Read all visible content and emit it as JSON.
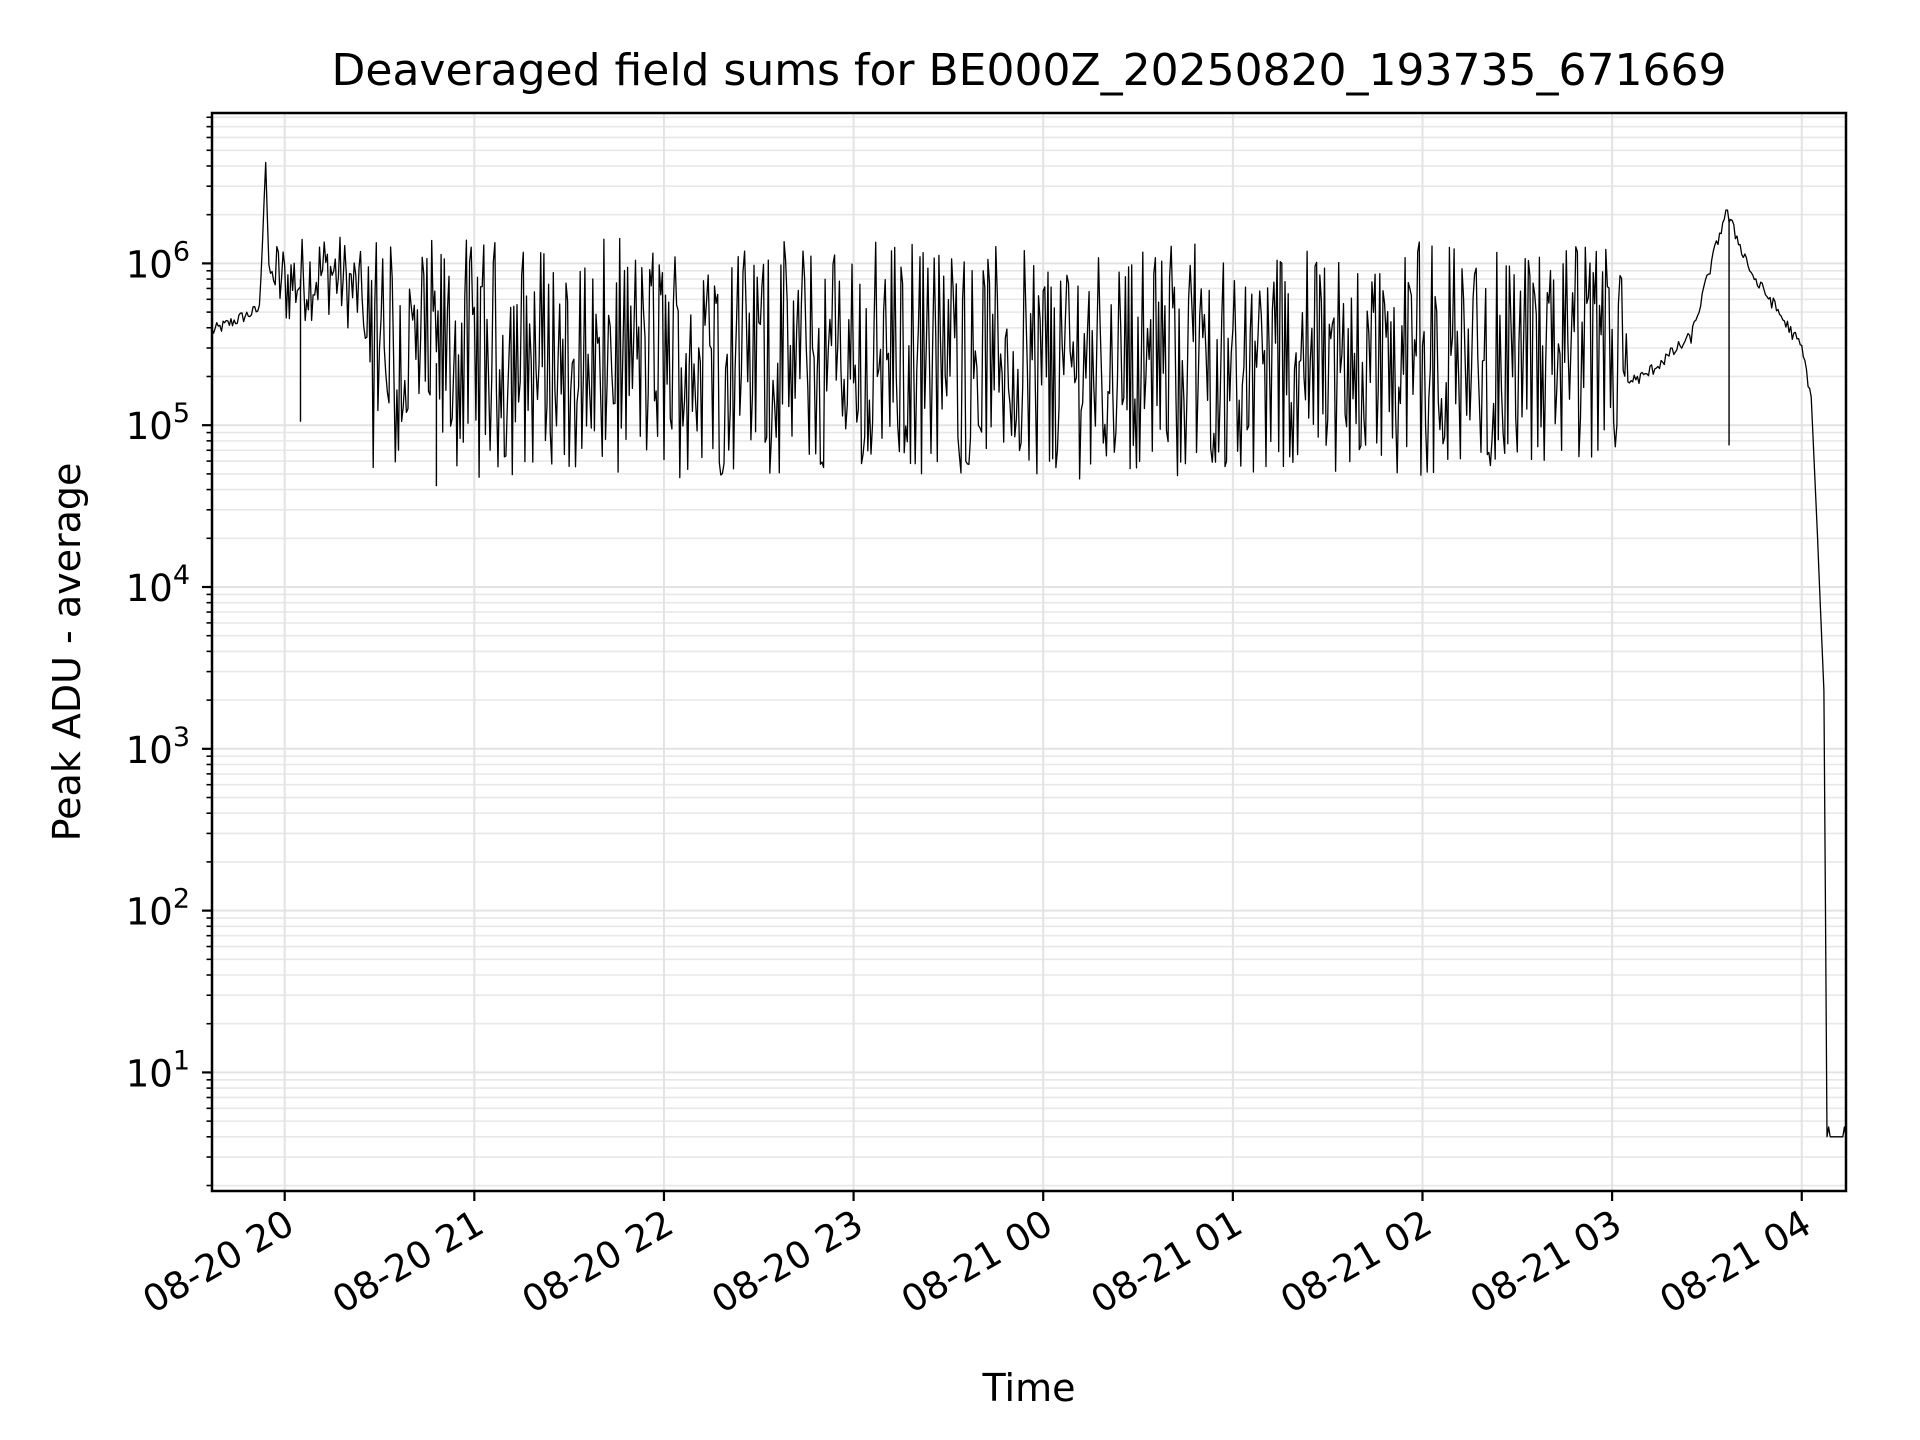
{
  "chart_data": {
    "type": "line",
    "title": "Deaveraged field sums for BE000Z_20250820_193735_671669",
    "xlabel": "Time",
    "ylabel": "Peak ADU - average",
    "yscale": "log",
    "ylim": [
      1.85,
      8500000
    ],
    "xlim": [
      "08-20 19:37",
      "08-21 04:14"
    ],
    "grid": true,
    "line_color": "#000000",
    "x_ticks": [
      "08-20 20",
      "08-20 21",
      "08-20 22",
      "08-20 23",
      "08-21 00",
      "08-21 01",
      "08-21 02",
      "08-21 03",
      "08-21 04"
    ],
    "y_ticks": [
      {
        "base": "10",
        "exp": "1"
      },
      {
        "base": "10",
        "exp": "2"
      },
      {
        "base": "10",
        "exp": "3"
      },
      {
        "base": "10",
        "exp": "4"
      },
      {
        "base": "10",
        "exp": "5"
      },
      {
        "base": "10",
        "exp": "6"
      }
    ],
    "series": [
      {
        "x": [
          "08-20 19:37",
          "08-20 19:45",
          "08-20 19:52",
          "08-20 19:54",
          "08-20 19:55",
          "08-20 19:57",
          "08-20 20:00",
          "08-20 20:15",
          "08-20 20:30",
          "08-20 20:40",
          "08-20 20:55",
          "08-20 21:30",
          "08-20 22:30",
          "08-20 23:30",
          "08-21 00:30",
          "08-21 01:30",
          "08-21 02:30",
          "08-21 02:55",
          "08-21 03:10",
          "08-21 03:25",
          "08-21 03:36",
          "08-21 03:45",
          "08-21 03:50",
          "08-21 04:00",
          "08-21 04:03",
          "08-21 04:05",
          "08-21 04:07",
          "08-21 04:08",
          "08-21 04:09",
          "08-21 04:14"
        ],
        "y": [
          380000,
          450000,
          520000,
          4300000,
          900000,
          800000,
          750000,
          900000,
          500000,
          300000,
          200000,
          250000,
          250000,
          250000,
          250000,
          220000,
          200000,
          160000,
          200000,
          350000,
          2100000,
          800000,
          600000,
          300000,
          150000,
          20000,
          2300,
          4,
          4,
          4
        ]
      }
    ]
  }
}
